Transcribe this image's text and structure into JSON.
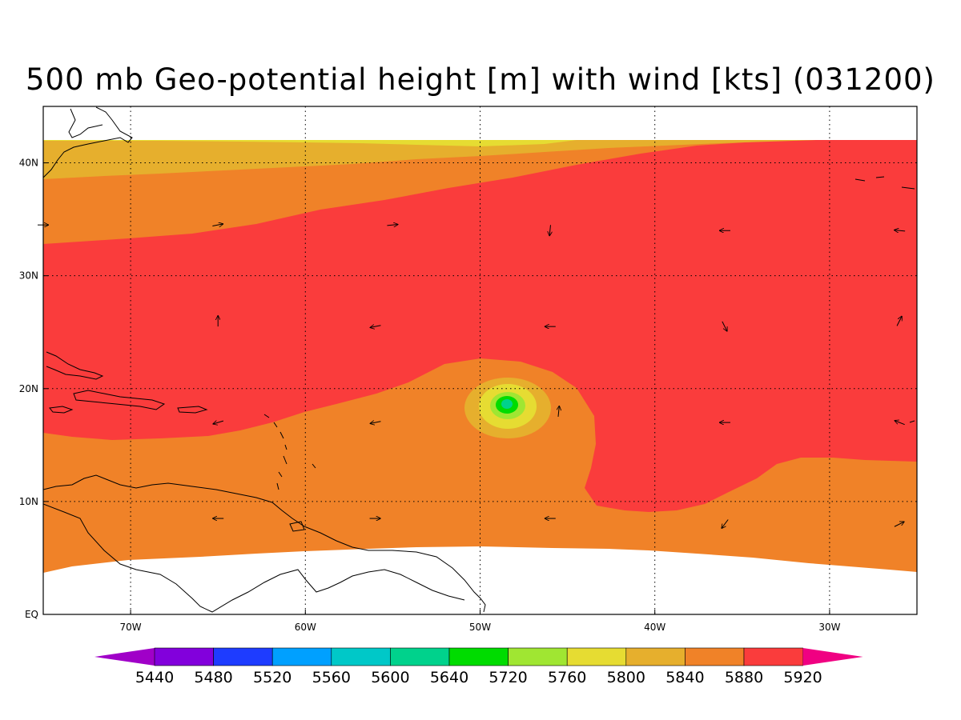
{
  "title": "500 mb Geo-potential height [m] with wind [kts] (031200)",
  "map": {
    "lon_range": [
      -75,
      -25
    ],
    "lat_range": [
      0,
      45
    ],
    "lon_ticks": [
      {
        "value": -70,
        "label": "70W"
      },
      {
        "value": -60,
        "label": "60W"
      },
      {
        "value": -50,
        "label": "50W"
      },
      {
        "value": -40,
        "label": "40W"
      },
      {
        "value": -30,
        "label": "30W"
      }
    ],
    "lat_ticks": [
      {
        "value": 0,
        "label": "EQ"
      },
      {
        "value": 10,
        "label": "10N"
      },
      {
        "value": 20,
        "label": "20N"
      },
      {
        "value": 30,
        "label": "30N"
      },
      {
        "value": 40,
        "label": "40N"
      }
    ],
    "grid": true
  },
  "colorbar": {
    "colors": [
      "#a000c8",
      "#8200dc",
      "#1e3cff",
      "#00a0ff",
      "#00c8c8",
      "#00d28c",
      "#00dc00",
      "#a0e632",
      "#e6dc32",
      "#e6af2d",
      "#f08228",
      "#fa3c3c",
      "#f00082"
    ],
    "labels": [
      "5440",
      "5480",
      "5520",
      "5560",
      "5600",
      "5640",
      "5720",
      "5760",
      "5800",
      "5840",
      "5880",
      "5920"
    ]
  },
  "wind_vectors": [
    {
      "lon": -75,
      "lat": 34.5,
      "u": 1,
      "v": 0
    },
    {
      "lon": -65,
      "lat": 34.5,
      "u": 1,
      "v": 0.2
    },
    {
      "lon": -55,
      "lat": 34.5,
      "u": 1,
      "v": 0.1
    },
    {
      "lon": -46,
      "lat": 34,
      "u": -0.1,
      "v": -1
    },
    {
      "lon": -36,
      "lat": 34,
      "u": -1,
      "v": 0
    },
    {
      "lon": -26,
      "lat": 34,
      "u": -1,
      "v": 0.1
    },
    {
      "lon": -65,
      "lat": 26,
      "u": 0,
      "v": 1
    },
    {
      "lon": -56,
      "lat": 25.5,
      "u": -1,
      "v": -0.2
    },
    {
      "lon": -46,
      "lat": 25.5,
      "u": -1,
      "v": 0
    },
    {
      "lon": -36,
      "lat": 25.5,
      "u": 0.5,
      "v": -1
    },
    {
      "lon": -26,
      "lat": 26,
      "u": 0.5,
      "v": 1
    },
    {
      "lon": -65,
      "lat": 17,
      "u": -1,
      "v": -0.3
    },
    {
      "lon": -56,
      "lat": 17,
      "u": -1,
      "v": -0.2
    },
    {
      "lon": -45.5,
      "lat": 18,
      "u": 0.1,
      "v": 1
    },
    {
      "lon": -36,
      "lat": 17,
      "u": -1,
      "v": 0
    },
    {
      "lon": -26,
      "lat": 17,
      "u": -1,
      "v": 0.4
    },
    {
      "lon": -65,
      "lat": 8.5,
      "u": -1,
      "v": 0
    },
    {
      "lon": -56,
      "lat": 8.5,
      "u": 1,
      "v": 0
    },
    {
      "lon": -46,
      "lat": 8.5,
      "u": -1,
      "v": 0
    },
    {
      "lon": -36,
      "lat": 8,
      "u": -0.6,
      "v": -0.8
    },
    {
      "lon": -26,
      "lat": 8,
      "u": 1,
      "v": 0.5
    }
  ]
}
